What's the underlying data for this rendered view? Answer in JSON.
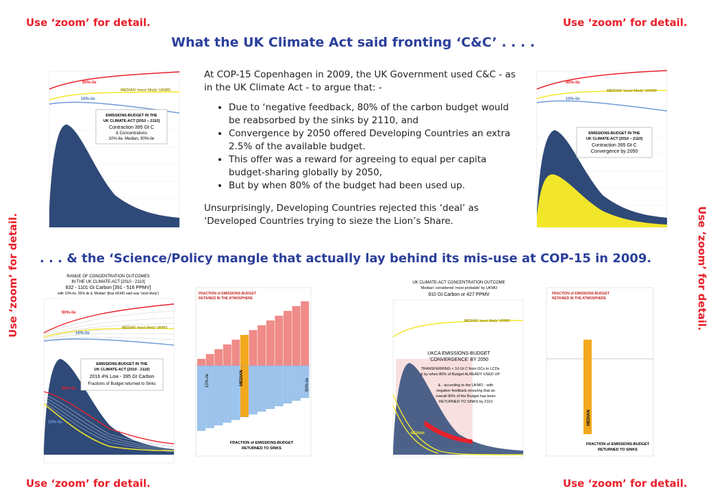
{
  "corner_notes": {
    "top_left": "Use ‘zoom’ for detail.",
    "top_right": "Use ‘zoom’ for detail.",
    "left_side": "Use ‘zoom’ for detail.",
    "right_side": "Use ‘zoom’ for detail.",
    "bottom_left": "Use ‘zoom’ for detail.",
    "bottom_right": "Use ‘zoom’ for detail."
  },
  "headings": {
    "top": "What the UK Climate Act said fronting ‘C&C’ . . . .",
    "middle": ". . . & the ‘Science/Policy mangle that actually lay behind its mis-use at COP-15 in 2009."
  },
  "intro": {
    "paragraph1": "At COP-15 Copenhagen in 2009, the UK Government used C&C - as in the UK Climate Act - to argue that: -",
    "bullets": [
      "Due to ‘negative feedback, 80% of the carbon budget would be reabsorbed by the sinks by 2110, and",
      "Convergence by 2050 offered Developing Countries an extra 2.5% of the available budget.",
      "This offer was a reward for agreeing to equal per capita budget-sharing globally by 2050,",
      "But by when 80% of the budget had been used up."
    ],
    "paragraph2": "Unsurprisingly, Developing Countries rejected this ‘deal’ as ‘Developed Countries trying to sieze the Lion’s Share."
  },
  "panel_tl": {
    "label_90": "90%-ile",
    "label_median": "MEDIAN ‘most likely’ UKMO",
    "label_10": "10%-ile",
    "box": [
      "EMISSIONS-BUDGET IN THE",
      "UK CLIMATE-ACT [2010 – 2110]",
      "Contraction 395 Gt C",
      "& Concentrations",
      "10%-ile, Median, 90%-ile"
    ]
  },
  "panel_tr": {
    "label_90": "90%-ile",
    "label_median": "MEDIAN ‘most likely’ UKMO",
    "label_10": "10%-ile",
    "box": [
      "EMISSIONS-BUDGET IN THE",
      "UK CLIMATE-ACT [2010 – 2110]",
      "Contraction 395 Gt C",
      "Convergence by 2050"
    ]
  },
  "panel_bl": {
    "title": [
      "RANGE OF CONCENTRATION OUTCOMES",
      "IN THE UK CLIMATE-ACT [2010 - 2110]",
      "832 - 1101 Gt Carbon [391 - 516 PPMV]",
      "with 10%-ile, 90%-ile & ‘Median’ [that UKMO said was ‘most likely’]"
    ],
    "label_90": "90%-ile",
    "label_median": "MEDIAN ‘most likely’ UKMO",
    "label_10": "10%-ile",
    "box": [
      "EMISSIONS-BUDGET IN THE",
      "UK CLIMATE-ACT [2010 - 2110]",
      "2016 4% Low - 395 Gt Carbon",
      "Fractions of Budget returned to Sinks"
    ],
    "curve_90": "90%-ile",
    "curve_10": "10%-ile"
  },
  "panel_bm": {
    "top_label": [
      "FRACTION of EMISSIONS-BUDGET",
      "RETAINED IN THE ATMOSPHERE"
    ],
    "bottom_label": [
      "FRACTION of EMISSIONS-BUDGET",
      "RETURNED TO SINKS"
    ],
    "left_bar_label": "10%-ile",
    "median_label": "MEDIAN",
    "right_bar_label": "90%-ile"
  },
  "panel_br1": {
    "title": [
      "UK CLIMATE-ACT CONCENTRATION OUTCOME",
      "‘Median’ considered ‘most probable’ by UKMO",
      "910 Gt Carbon or 427 PPMV"
    ],
    "label_median": "MEDIAN ‘most likely’ UKMO",
    "box": [
      "UKCA EMISSIONS-BUDGET",
      "‘CONVERGENCE’ BY 2050"
    ],
    "note1": [
      "TRANSFERRING < 10 Gt C from DCs to LCDs",
      "& by when 80% of Budget ALREADY USED UP"
    ],
    "note2": [
      "& - according to the UKMO - with",
      "negative feedback ensuring that an",
      "overall 80% of the Budget has been",
      "RETURNED TO SINKS by 2110"
    ],
    "median_tag": "MEDIAN"
  },
  "panel_br2": {
    "top_label": [
      "FRACTION of EMISSIONS-BUDGET",
      "RETAINED IN THE ATMOSPHERE"
    ],
    "bottom_label": [
      "FRACTION of EMISSIONS-BUDGET",
      "RETURNED TO SINKS"
    ],
    "median_label": "MEDIAN"
  },
  "colors": {
    "accent_red": "#e8202a",
    "heading_blue": "#2b3f9a",
    "budget_navy": "#2f4a78",
    "yellow": "#f2e62a",
    "bar_blue": "#9cc4ec",
    "bar_red": "#ef8b88",
    "median_orange": "#f2a81d"
  }
}
